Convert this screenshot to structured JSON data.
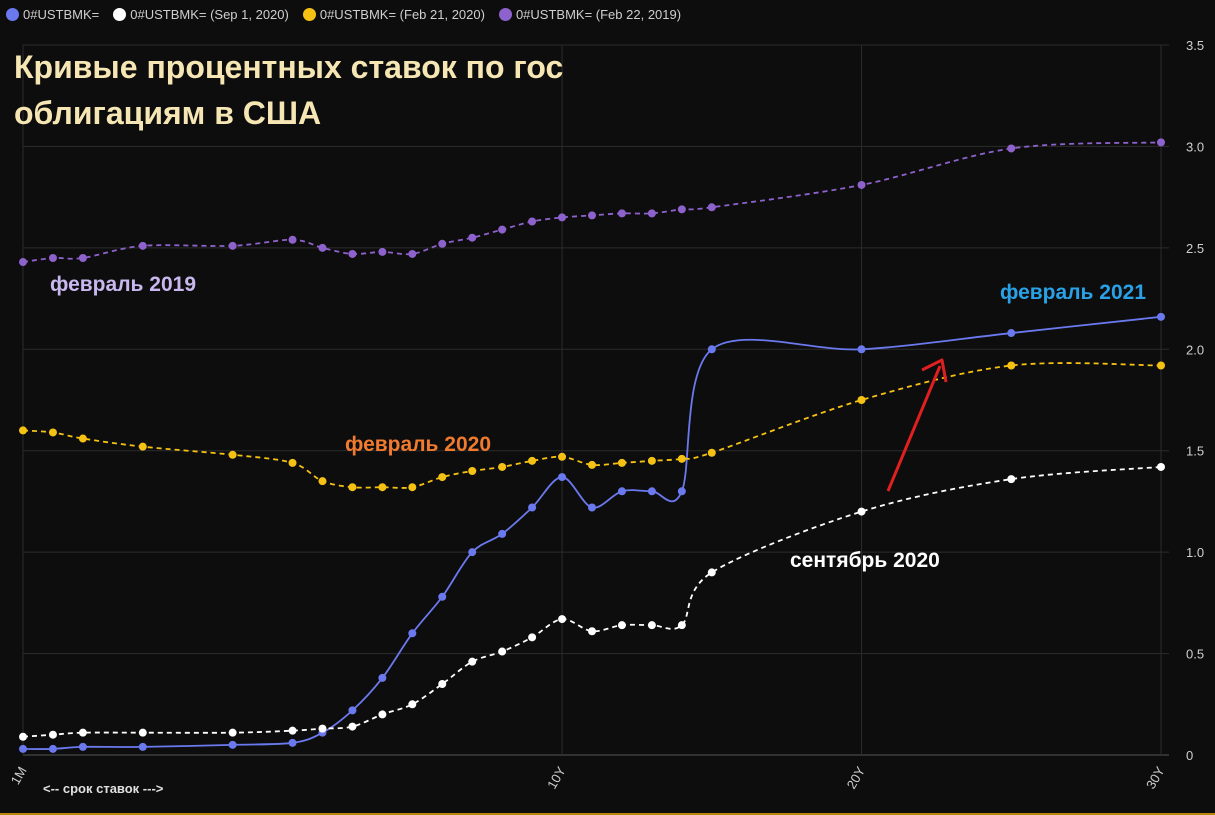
{
  "legend": [
    {
      "label": "0#USTBMK=",
      "color": "#6b79ef"
    },
    {
      "label": "0#USTBMK= (Sep 1, 2020)",
      "color": "#ffffff"
    },
    {
      "label": "0#USTBMK= (Feb 21, 2020)",
      "color": "#f5c214"
    },
    {
      "label": "0#USTBMK= (Feb 22, 2019)",
      "color": "#8e62cc"
    }
  ],
  "title": "Кривые процентных ставок по гос облигациям в США",
  "annotations": {
    "feb2019": {
      "text": "февраль 2019",
      "color": "#c9b8ef"
    },
    "feb2021": {
      "text": "февраль 2021",
      "color": "#2aa1e6"
    },
    "feb2020": {
      "text": "февраль 2020",
      "color": "#f07a2e"
    },
    "sep2020": {
      "text": "сентябрь 2020",
      "color": "#ffffff"
    }
  },
  "axis_note": "<-- срок ставок --->",
  "chart_data": {
    "type": "line",
    "x_tick_labels": [
      "1M",
      "10Y",
      "20Y",
      "30Y"
    ],
    "x_tick_index": [
      0,
      18,
      28,
      38
    ],
    "y_ticks": [
      0,
      0.5,
      1.0,
      1.5,
      2.0,
      2.5,
      3.0,
      3.5
    ],
    "y_tick_labels": [
      "0",
      "0.5",
      "1.0",
      "1.5",
      "2.0",
      "2.5",
      "3.0",
      "3.5"
    ],
    "ylim": [
      0,
      3.5
    ],
    "grid": true,
    "series": [
      {
        "name": "0#USTBMK= (Feb 22, 2019)",
        "color": "#8e62cc",
        "dashed": true,
        "points": [
          [
            0,
            2.43
          ],
          [
            1,
            2.45
          ],
          [
            2,
            2.45
          ],
          [
            4,
            2.51
          ],
          [
            7,
            2.51
          ],
          [
            9,
            2.54
          ],
          [
            10,
            2.5
          ],
          [
            11,
            2.47
          ],
          [
            12,
            2.48
          ],
          [
            13,
            2.47
          ],
          [
            14,
            2.52
          ],
          [
            15,
            2.55
          ],
          [
            16,
            2.59
          ],
          [
            17,
            2.63
          ],
          [
            18,
            2.65
          ],
          [
            19,
            2.66
          ],
          [
            20,
            2.67
          ],
          [
            21,
            2.67
          ],
          [
            22,
            2.69
          ],
          [
            23,
            2.7
          ],
          [
            28,
            2.81
          ],
          [
            33,
            2.99
          ],
          [
            38,
            3.02
          ]
        ]
      },
      {
        "name": "0#USTBMK=",
        "color": "#6b79ef",
        "dashed": false,
        "points": [
          [
            0,
            0.03
          ],
          [
            1,
            0.03
          ],
          [
            2,
            0.04
          ],
          [
            4,
            0.04
          ],
          [
            7,
            0.05
          ],
          [
            9,
            0.06
          ],
          [
            10,
            0.11
          ],
          [
            11,
            0.22
          ],
          [
            12,
            0.38
          ],
          [
            13,
            0.6
          ],
          [
            14,
            0.78
          ],
          [
            15,
            1.0
          ],
          [
            16,
            1.09
          ],
          [
            17,
            1.22
          ],
          [
            18,
            1.37
          ],
          [
            19,
            1.22
          ],
          [
            20,
            1.3
          ],
          [
            21,
            1.3
          ],
          [
            22,
            1.3
          ],
          [
            23,
            2.0
          ],
          [
            28,
            2.0
          ],
          [
            33,
            2.08
          ],
          [
            38,
            2.16
          ]
        ]
      },
      {
        "name": "0#USTBMK= (Feb 21, 2020)",
        "color": "#f5c214",
        "dashed": true,
        "points": [
          [
            0,
            1.6
          ],
          [
            1,
            1.59
          ],
          [
            2,
            1.56
          ],
          [
            4,
            1.52
          ],
          [
            7,
            1.48
          ],
          [
            9,
            1.44
          ],
          [
            10,
            1.35
          ],
          [
            11,
            1.32
          ],
          [
            12,
            1.32
          ],
          [
            13,
            1.32
          ],
          [
            14,
            1.37
          ],
          [
            15,
            1.4
          ],
          [
            16,
            1.42
          ],
          [
            17,
            1.45
          ],
          [
            18,
            1.47
          ],
          [
            19,
            1.43
          ],
          [
            20,
            1.44
          ],
          [
            21,
            1.45
          ],
          [
            22,
            1.46
          ],
          [
            23,
            1.49
          ],
          [
            28,
            1.75
          ],
          [
            33,
            1.92
          ],
          [
            38,
            1.92
          ]
        ]
      },
      {
        "name": "0#USTBMK= (Sep 1, 2020)",
        "color": "#ffffff",
        "dashed": true,
        "points": [
          [
            0,
            0.09
          ],
          [
            1,
            0.1
          ],
          [
            2,
            0.11
          ],
          [
            4,
            0.11
          ],
          [
            7,
            0.11
          ],
          [
            9,
            0.12
          ],
          [
            10,
            0.13
          ],
          [
            11,
            0.14
          ],
          [
            12,
            0.2
          ],
          [
            13,
            0.25
          ],
          [
            14,
            0.35
          ],
          [
            15,
            0.46
          ],
          [
            16,
            0.51
          ],
          [
            17,
            0.58
          ],
          [
            18,
            0.67
          ],
          [
            19,
            0.61
          ],
          [
            20,
            0.64
          ],
          [
            21,
            0.64
          ],
          [
            22,
            0.64
          ],
          [
            23,
            0.9
          ],
          [
            28,
            1.2
          ],
          [
            33,
            1.36
          ],
          [
            38,
            1.42
          ]
        ]
      }
    ]
  }
}
